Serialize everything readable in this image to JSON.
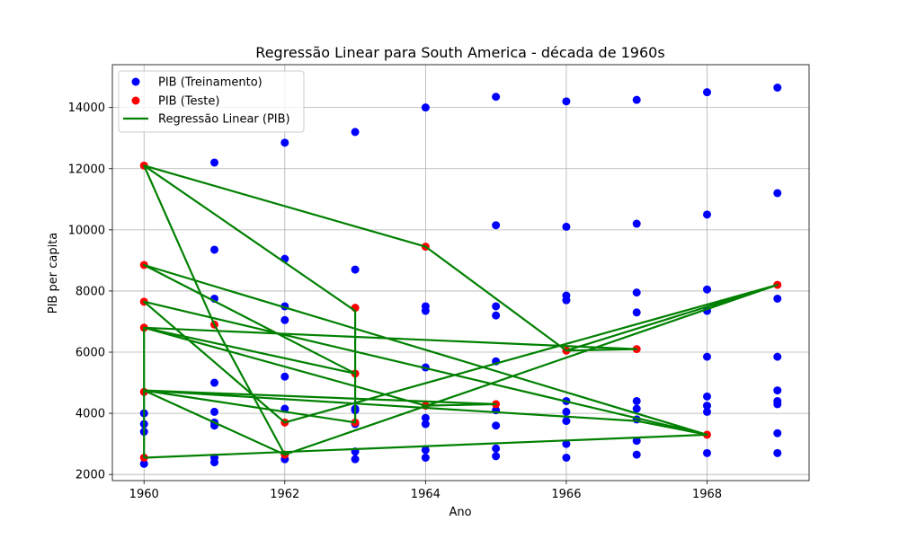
{
  "chart_data": {
    "type": "scatter",
    "title": "Regressão Linear para South America - década de 1960s",
    "xlabel": "Ano",
    "ylabel": "PIB per capita",
    "xlim": [
      1959.55,
      1969.45
    ],
    "ylim": [
      1800,
      15400
    ],
    "xticks": [
      1960,
      1962,
      1964,
      1966,
      1968
    ],
    "yticks": [
      2000,
      4000,
      6000,
      8000,
      10000,
      12000,
      14000
    ],
    "grid": true,
    "legend_position": "upper left",
    "legend": [
      "PIB (Treinamento)",
      "PIB (Teste)",
      "Regressão Linear (PIB)"
    ],
    "colors": {
      "train": "#0000ff",
      "test": "#ff0000",
      "line": "#008000"
    },
    "series": [
      {
        "name": "PIB (Treinamento)",
        "kind": "scatter",
        "points": [
          [
            1960,
            2350
          ],
          [
            1960,
            3400
          ],
          [
            1960,
            3650
          ],
          [
            1960,
            4000
          ],
          [
            1961,
            2400
          ],
          [
            1961,
            2550
          ],
          [
            1961,
            3600
          ],
          [
            1961,
            3700
          ],
          [
            1961,
            4050
          ],
          [
            1961,
            5000
          ],
          [
            1961,
            7750
          ],
          [
            1961,
            9350
          ],
          [
            1961,
            12200
          ],
          [
            1962,
            2500
          ],
          [
            1962,
            4150
          ],
          [
            1962,
            5200
          ],
          [
            1962,
            7050
          ],
          [
            1962,
            7500
          ],
          [
            1962,
            9050
          ],
          [
            1962,
            12850
          ],
          [
            1963,
            2500
          ],
          [
            1963,
            2750
          ],
          [
            1963,
            3650
          ],
          [
            1963,
            4100
          ],
          [
            1963,
            4150
          ],
          [
            1963,
            8700
          ],
          [
            1963,
            13200
          ],
          [
            1964,
            2550
          ],
          [
            1964,
            2800
          ],
          [
            1964,
            3650
          ],
          [
            1964,
            3850
          ],
          [
            1964,
            5500
          ],
          [
            1964,
            7350
          ],
          [
            1964,
            7500
          ],
          [
            1964,
            14000
          ],
          [
            1965,
            2600
          ],
          [
            1965,
            2850
          ],
          [
            1965,
            3600
          ],
          [
            1965,
            4100
          ],
          [
            1965,
            5700
          ],
          [
            1965,
            7200
          ],
          [
            1965,
            7500
          ],
          [
            1965,
            10150
          ],
          [
            1965,
            14350
          ],
          [
            1966,
            2550
          ],
          [
            1966,
            3000
          ],
          [
            1966,
            3750
          ],
          [
            1966,
            4050
          ],
          [
            1966,
            4400
          ],
          [
            1966,
            7700
          ],
          [
            1966,
            7850
          ],
          [
            1966,
            10100
          ],
          [
            1966,
            14200
          ],
          [
            1967,
            2650
          ],
          [
            1967,
            3100
          ],
          [
            1967,
            3800
          ],
          [
            1967,
            4150
          ],
          [
            1967,
            4400
          ],
          [
            1967,
            7300
          ],
          [
            1967,
            7950
          ],
          [
            1967,
            10200
          ],
          [
            1967,
            14250
          ],
          [
            1968,
            2700
          ],
          [
            1968,
            4050
          ],
          [
            1968,
            4250
          ],
          [
            1968,
            4550
          ],
          [
            1968,
            5850
          ],
          [
            1968,
            7350
          ],
          [
            1968,
            8050
          ],
          [
            1968,
            10500
          ],
          [
            1968,
            14500
          ],
          [
            1969,
            2700
          ],
          [
            1969,
            3350
          ],
          [
            1969,
            4300
          ],
          [
            1969,
            4400
          ],
          [
            1969,
            4750
          ],
          [
            1969,
            5850
          ],
          [
            1969,
            7750
          ],
          [
            1969,
            11200
          ],
          [
            1969,
            14650
          ]
        ]
      },
      {
        "name": "PIB (Teste)",
        "kind": "scatter",
        "points": [
          [
            1960,
            12100
          ],
          [
            1960,
            8850
          ],
          [
            1960,
            7650
          ],
          [
            1960,
            6800
          ],
          [
            1960,
            4700
          ],
          [
            1960,
            2550
          ],
          [
            1961,
            6900
          ],
          [
            1962,
            3700
          ],
          [
            1962,
            2650
          ],
          [
            1963,
            7450
          ],
          [
            1963,
            5300
          ],
          [
            1963,
            3700
          ],
          [
            1964,
            9450
          ],
          [
            1964,
            4250
          ],
          [
            1965,
            4300
          ],
          [
            1966,
            6050
          ],
          [
            1967,
            6100
          ],
          [
            1968,
            3300
          ],
          [
            1969,
            8200
          ]
        ]
      },
      {
        "name": "Regressão Linear (PIB)",
        "kind": "line",
        "points": [
          [
            1960,
            12100
          ],
          [
            1963,
            7350
          ],
          [
            1963,
            3700
          ],
          [
            1960,
            4750
          ],
          [
            1965,
            4300
          ],
          [
            1964,
            4250
          ],
          [
            1960,
            6800
          ],
          [
            1963,
            5300
          ],
          [
            1960,
            8850
          ],
          [
            1968,
            3300
          ],
          [
            1960,
            7650
          ],
          [
            1962,
            3700
          ],
          [
            1969,
            8200
          ],
          [
            1962,
            2650
          ],
          [
            1961,
            6900
          ],
          [
            1960,
            12100
          ],
          [
            1964,
            9450
          ],
          [
            1966,
            6050
          ],
          [
            1967,
            6100
          ],
          [
            1960,
            6800
          ],
          [
            1960,
            2550
          ],
          [
            1968,
            3300
          ],
          [
            1967,
            3750
          ],
          [
            1960,
            4750
          ],
          [
            1962,
            2650
          ],
          [
            1969,
            8200
          ],
          [
            1966,
            6050
          ],
          [
            1967,
            6100
          ]
        ]
      }
    ]
  }
}
